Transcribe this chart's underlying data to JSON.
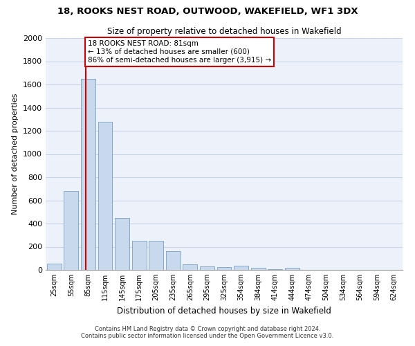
{
  "title": "18, ROOKS NEST ROAD, OUTWOOD, WAKEFIELD, WF1 3DX",
  "subtitle": "Size of property relative to detached houses in Wakefield",
  "xlabel": "Distribution of detached houses by size in Wakefield",
  "ylabel": "Number of detached properties",
  "bar_labels": [
    "25sqm",
    "55sqm",
    "85sqm",
    "115sqm",
    "145sqm",
    "175sqm",
    "205sqm",
    "235sqm",
    "265sqm",
    "295sqm",
    "325sqm",
    "354sqm",
    "384sqm",
    "414sqm",
    "444sqm",
    "474sqm",
    "504sqm",
    "534sqm",
    "564sqm",
    "594sqm",
    "624sqm"
  ],
  "bar_values": [
    55,
    680,
    1650,
    1280,
    450,
    250,
    250,
    160,
    45,
    30,
    25,
    35,
    20,
    5,
    20,
    0,
    0,
    0,
    0,
    0,
    0
  ],
  "bar_color": "#c8d9ee",
  "bar_edge_color": "#7a9fc0",
  "ylim": [
    0,
    2000
  ],
  "yticks": [
    0,
    200,
    400,
    600,
    800,
    1000,
    1200,
    1400,
    1600,
    1800,
    2000
  ],
  "vline_color": "#cc0000",
  "annotation_text": "18 ROOKS NEST ROAD: 81sqm\n← 13% of detached houses are smaller (600)\n86% of semi-detached houses are larger (3,915) →",
  "annotation_box_color": "#ffffff",
  "annotation_border_color": "#cc0000",
  "footer_line1": "Contains HM Land Registry data © Crown copyright and database right 2024.",
  "footer_line2": "Contains public sector information licensed under the Open Government Licence v3.0.",
  "grid_color": "#c8d4e8",
  "background_color": "#edf1f9"
}
